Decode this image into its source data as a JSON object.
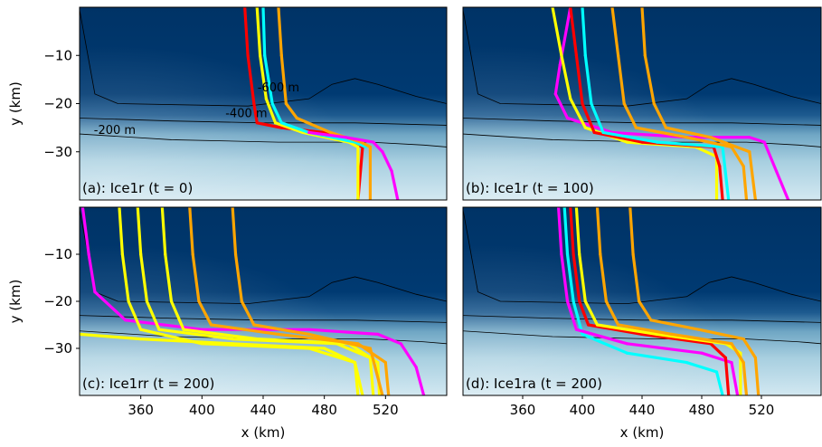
{
  "chart_data": [
    {
      "type": "line",
      "panel_label": "(a): Ice1r (t = 0)",
      "xlabel": "",
      "ylabel": "y (km)",
      "xlim": [
        320,
        560
      ],
      "ylim": [
        -40,
        0
      ],
      "xticks": [],
      "yticks": [
        -10,
        -20,
        -30
      ],
      "contour_labels": [
        "-600 m",
        "-400 m",
        "-200 m"
      ],
      "series": [
        {
          "color": "#ff0000",
          "x": [
            428,
            430,
            434,
            436,
            452,
            480,
            505,
            502
          ],
          "y": [
            0,
            -10,
            -20,
            -24,
            -25,
            -26,
            -29,
            -40
          ]
        },
        {
          "color": "#ffff00",
          "x": [
            436,
            438,
            442,
            448,
            466,
            496,
            502,
            502
          ],
          "y": [
            0,
            -10,
            -19,
            -24,
            -26,
            -28,
            -29,
            -40
          ]
        },
        {
          "color": "#00ffff",
          "x": [
            440,
            441,
            446,
            452,
            470,
            500,
            507
          ],
          "y": [
            0,
            -10,
            -20,
            -24,
            -26,
            -28,
            -29
          ]
        },
        {
          "color": "#ffa500",
          "x": [
            450,
            452,
            455,
            462,
            484,
            504,
            510,
            510
          ],
          "y": [
            0,
            -10,
            -20,
            -23,
            -26,
            -28,
            -29,
            -40
          ]
        },
        {
          "color": "#ff00ff",
          "x": [
            470,
            494,
            512,
            518,
            524,
            528
          ],
          "y": [
            -26,
            -27,
            -28,
            -30,
            -34,
            -40
          ]
        }
      ]
    },
    {
      "type": "line",
      "panel_label": "(b): Ice1r (t = 100)",
      "xlabel": "",
      "ylabel": "",
      "xlim": [
        320,
        560
      ],
      "ylim": [
        -40,
        0
      ],
      "xticks": [],
      "yticks": [],
      "series": [
        {
          "color": "#ff00ff",
          "x": [
            392,
            385,
            382,
            390,
            420,
            470,
            512,
            522,
            530,
            538
          ],
          "y": [
            0,
            -12,
            -18,
            -23,
            -26,
            -27,
            -27,
            -28,
            -34,
            -40
          ]
        },
        {
          "color": "#ffff00",
          "x": [
            380,
            386,
            392,
            402,
            430,
            476,
            490,
            490
          ],
          "y": [
            0,
            -10,
            -19,
            -25,
            -28,
            -29,
            -31,
            -40
          ]
        },
        {
          "color": "#ff0000",
          "x": [
            392,
            396,
            400,
            408,
            440,
            488,
            492,
            494
          ],
          "y": [
            0,
            -10,
            -20,
            -26,
            -28,
            -29,
            -33,
            -40
          ]
        },
        {
          "color": "#00ffff",
          "x": [
            400,
            402,
            406,
            414,
            450,
            494,
            498
          ],
          "y": [
            0,
            -10,
            -20,
            -26,
            -28,
            -29,
            -40
          ]
        },
        {
          "color": "#ffa500",
          "x": [
            420,
            424,
            428,
            436,
            470,
            500,
            508,
            510
          ],
          "y": [
            0,
            -10,
            -20,
            -25,
            -27,
            -29,
            -33,
            -40
          ]
        },
        {
          "color": "#ffa500",
          "x": [
            440,
            442,
            448,
            456,
            486,
            512,
            516
          ],
          "y": [
            0,
            -10,
            -20,
            -25,
            -27,
            -30,
            -40
          ]
        }
      ]
    },
    {
      "type": "line",
      "panel_label": "(c): Ice1rr (t = 200)",
      "xlabel": "x (km)",
      "ylabel": "y (km)",
      "xlim": [
        320,
        560
      ],
      "ylim": [
        -40,
        0
      ],
      "xticks": [
        360,
        400,
        440,
        480,
        520
      ],
      "yticks": [
        -10,
        -20,
        -30
      ],
      "series": [
        {
          "color": "#ff00ff",
          "x": [
            322,
            326,
            330,
            350,
            400,
            470,
            515,
            530,
            540,
            545
          ],
          "y": [
            0,
            -10,
            -18,
            -24,
            -26,
            -26,
            -27,
            -29,
            -34,
            -40
          ]
        },
        {
          "color": "#ffff00",
          "x": [
            320,
            340,
            360,
            420,
            480,
            500,
            502
          ],
          "y": [
            -27,
            -27.5,
            -28,
            -29,
            -30,
            -33,
            -40
          ]
        },
        {
          "color": "#ffff00",
          "x": [
            346,
            348,
            352,
            360,
            400,
            470,
            500,
            505
          ],
          "y": [
            0,
            -10,
            -20,
            -26,
            -29,
            -30,
            -33,
            -40
          ]
        },
        {
          "color": "#ffff00",
          "x": [
            358,
            360,
            364,
            372,
            420,
            488,
            510,
            512
          ],
          "y": [
            0,
            -10,
            -20,
            -26,
            -28,
            -29,
            -32,
            -40
          ]
        },
        {
          "color": "#ffff00",
          "x": [
            374,
            376,
            380,
            388,
            436,
            496,
            515,
            516
          ],
          "y": [
            0,
            -10,
            -20,
            -26,
            -28,
            -29,
            -33,
            -40
          ]
        },
        {
          "color": "#ffa500",
          "x": [
            392,
            394,
            398,
            406,
            450,
            502,
            520,
            522
          ],
          "y": [
            0,
            -10,
            -20,
            -25,
            -27,
            -29,
            -33,
            -40
          ]
        },
        {
          "color": "#ffa500",
          "x": [
            420,
            422,
            426,
            434,
            470,
            510,
            518
          ],
          "y": [
            0,
            -10,
            -20,
            -25,
            -27,
            -30,
            -40
          ]
        }
      ]
    },
    {
      "type": "line",
      "panel_label": "(d): Ice1ra (t = 200)",
      "xlabel": "x (km)",
      "ylabel": "",
      "xlim": [
        320,
        560
      ],
      "ylim": [
        -40,
        0
      ],
      "xticks": [
        360,
        400,
        440,
        480,
        520
      ],
      "yticks": [],
      "series": [
        {
          "color": "#00ffff",
          "x": [
            388,
            390,
            394,
            400,
            430,
            470,
            490,
            494
          ],
          "y": [
            0,
            -10,
            -20,
            -27,
            -31,
            -33,
            -35,
            -40
          ]
        },
        {
          "color": "#ff00ff",
          "x": [
            384,
            386,
            390,
            396,
            430,
            480,
            500,
            504
          ],
          "y": [
            0,
            -10,
            -20,
            -26,
            -29,
            -31,
            -33,
            -40
          ]
        },
        {
          "color": "#ff0000",
          "x": [
            392,
            394,
            398,
            404,
            440,
            486,
            496,
            498
          ],
          "y": [
            0,
            -10,
            -20,
            -25,
            -27,
            -29,
            -32,
            -40
          ]
        },
        {
          "color": "#ffff00",
          "x": [
            396,
            398,
            402,
            410,
            450,
            496,
            506,
            506
          ],
          "y": [
            0,
            -10,
            -20,
            -25,
            -27,
            -29,
            -31,
            -40
          ]
        },
        {
          "color": "#ffa500",
          "x": [
            410,
            412,
            416,
            424,
            460,
            500,
            508,
            510
          ],
          "y": [
            0,
            -10,
            -20,
            -25,
            -27,
            -29,
            -33,
            -40
          ]
        },
        {
          "color": "#ffa500",
          "x": [
            432,
            434,
            438,
            446,
            478,
            508,
            516,
            518
          ],
          "y": [
            0,
            -10,
            -20,
            -24,
            -26,
            -28,
            -32,
            -40
          ]
        }
      ]
    }
  ],
  "colors": {
    "deep_water": "#003366",
    "mid_water": "#1d5a8f",
    "shallow_water": "#cfe6f0",
    "red": "#ff0000",
    "yellow": "#ffff00",
    "cyan": "#00ffff",
    "orange": "#ffa500",
    "magenta": "#ff00ff"
  }
}
